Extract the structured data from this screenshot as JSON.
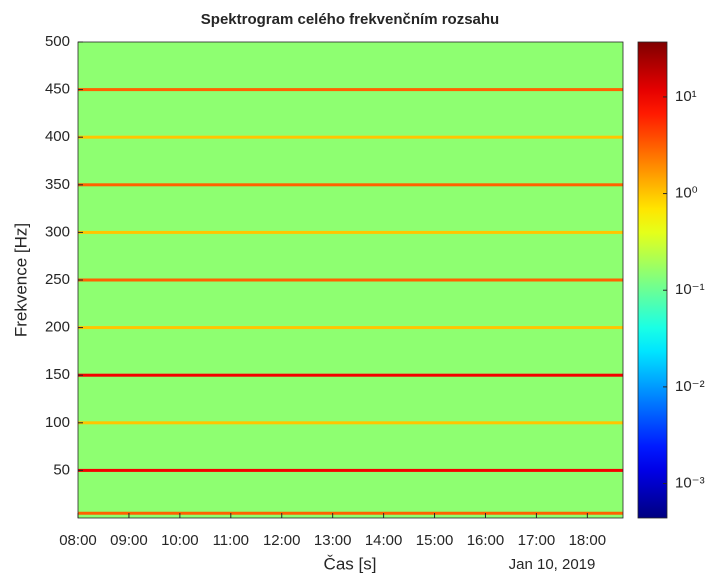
{
  "chart_data": {
    "type": "spectrogram",
    "title": "Spektrogram celého frekvenčním rozsahu",
    "x_label": "Čas [s]",
    "y_label": "Frekvence [Hz]",
    "date_label": "Jan 10, 2019",
    "xlim": [
      8,
      18.7
    ],
    "xticks": [
      {
        "value": 8,
        "label": "08:00"
      },
      {
        "value": 9,
        "label": "09:00"
      },
      {
        "value": 10,
        "label": "10:00"
      },
      {
        "value": 11,
        "label": "11:00"
      },
      {
        "value": 12,
        "label": "12:00"
      },
      {
        "value": 13,
        "label": "13:00"
      },
      {
        "value": 14,
        "label": "14:00"
      },
      {
        "value": 15,
        "label": "15:00"
      },
      {
        "value": 16,
        "label": "16:00"
      },
      {
        "value": 17,
        "label": "17:00"
      },
      {
        "value": 18,
        "label": "18:00"
      }
    ],
    "ylim": [
      0,
      500
    ],
    "yticks": [
      50,
      100,
      150,
      200,
      250,
      300,
      350,
      400,
      450,
      500
    ],
    "clim": [
      0.00044,
      37
    ],
    "color_log_scale": true,
    "colorticks": [
      {
        "value": 0.001,
        "label": "10⁻³"
      },
      {
        "value": 0.01,
        "label": "10⁻²"
      },
      {
        "value": 0.1,
        "label": "10⁻¹"
      },
      {
        "value": 1,
        "label": "10⁰"
      },
      {
        "value": 10,
        "label": "10¹"
      }
    ],
    "background_level": 0.15,
    "lines": [
      {
        "frequency": 5,
        "level": 3
      },
      {
        "frequency": 50,
        "level": 10
      },
      {
        "frequency": 100,
        "level": 1
      },
      {
        "frequency": 150,
        "level": 10
      },
      {
        "frequency": 200,
        "level": 1
      },
      {
        "frequency": 250,
        "level": 3
      },
      {
        "frequency": 300,
        "level": 1
      },
      {
        "frequency": 350,
        "level": 3
      },
      {
        "frequency": 400,
        "level": 1
      },
      {
        "frequency": 450,
        "level": 3
      }
    ]
  }
}
